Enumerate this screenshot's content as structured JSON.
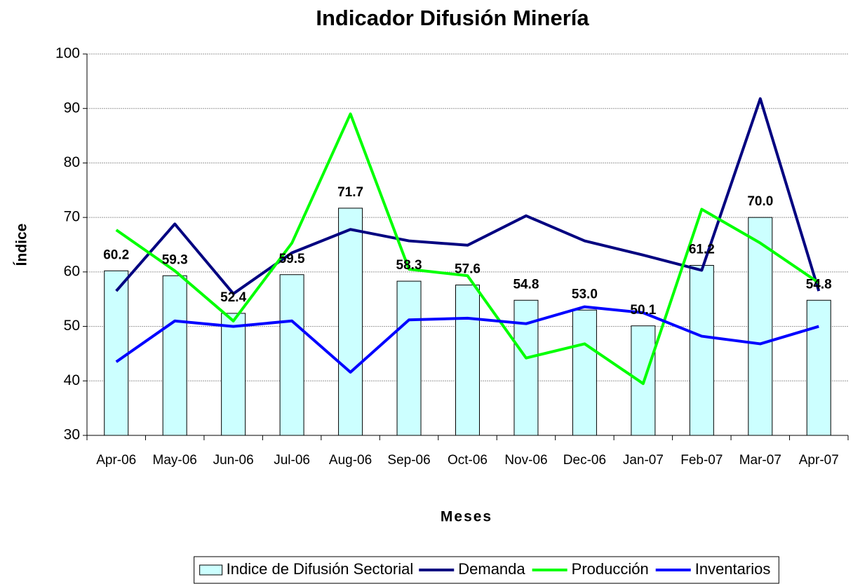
{
  "chart_data": {
    "type": "bar",
    "title": "Indicador Difusión Minería",
    "xlabel": "Meses",
    "ylabel": "Índice",
    "categories": [
      "Apr-06",
      "May-06",
      "Jun-06",
      "Jul-06",
      "Aug-06",
      "Sep-06",
      "Oct-06",
      "Nov-06",
      "Dec-06",
      "Jan-07",
      "Feb-07",
      "Mar-07",
      "Apr-07"
    ],
    "series": [
      {
        "name": "Indice de Difusión Sectorial",
        "type": "bar",
        "color": "#ccffff",
        "values": [
          60.2,
          59.3,
          52.4,
          59.5,
          71.7,
          58.3,
          57.6,
          54.8,
          53.0,
          50.1,
          61.2,
          70.0,
          54.8
        ],
        "value_labels": [
          "60.2",
          "59.3",
          "52.4",
          "59.5",
          "71.7",
          "58.3",
          "57.6",
          "54.8",
          "53.0",
          "50.1",
          "61.2",
          "70.0",
          "54.8"
        ]
      },
      {
        "name": "Demanda",
        "type": "line",
        "color": "#000080",
        "values": [
          56.5,
          68.8,
          56,
          63.5,
          67.8,
          65.7,
          64.9,
          70.3,
          65.7,
          63.1,
          60.3,
          91.8,
          56.5
        ]
      },
      {
        "name": "Producción",
        "type": "line",
        "color": "#00ff00",
        "values": [
          67.7,
          60.2,
          51,
          65.3,
          89,
          60.5,
          59.3,
          44.2,
          46.8,
          39.5,
          71.5,
          65.3,
          58
        ]
      },
      {
        "name": "Inventarios",
        "type": "line",
        "color": "#0000ff",
        "values": [
          43.5,
          51,
          50,
          51,
          41.6,
          51.2,
          51.5,
          50.5,
          53.6,
          52.5,
          48.2,
          46.8,
          50
        ]
      }
    ],
    "ylim": [
      30,
      100
    ],
    "yticks": [
      30,
      40,
      50,
      60,
      70,
      80,
      90,
      100
    ],
    "grid": true,
    "legend": "bottom"
  }
}
